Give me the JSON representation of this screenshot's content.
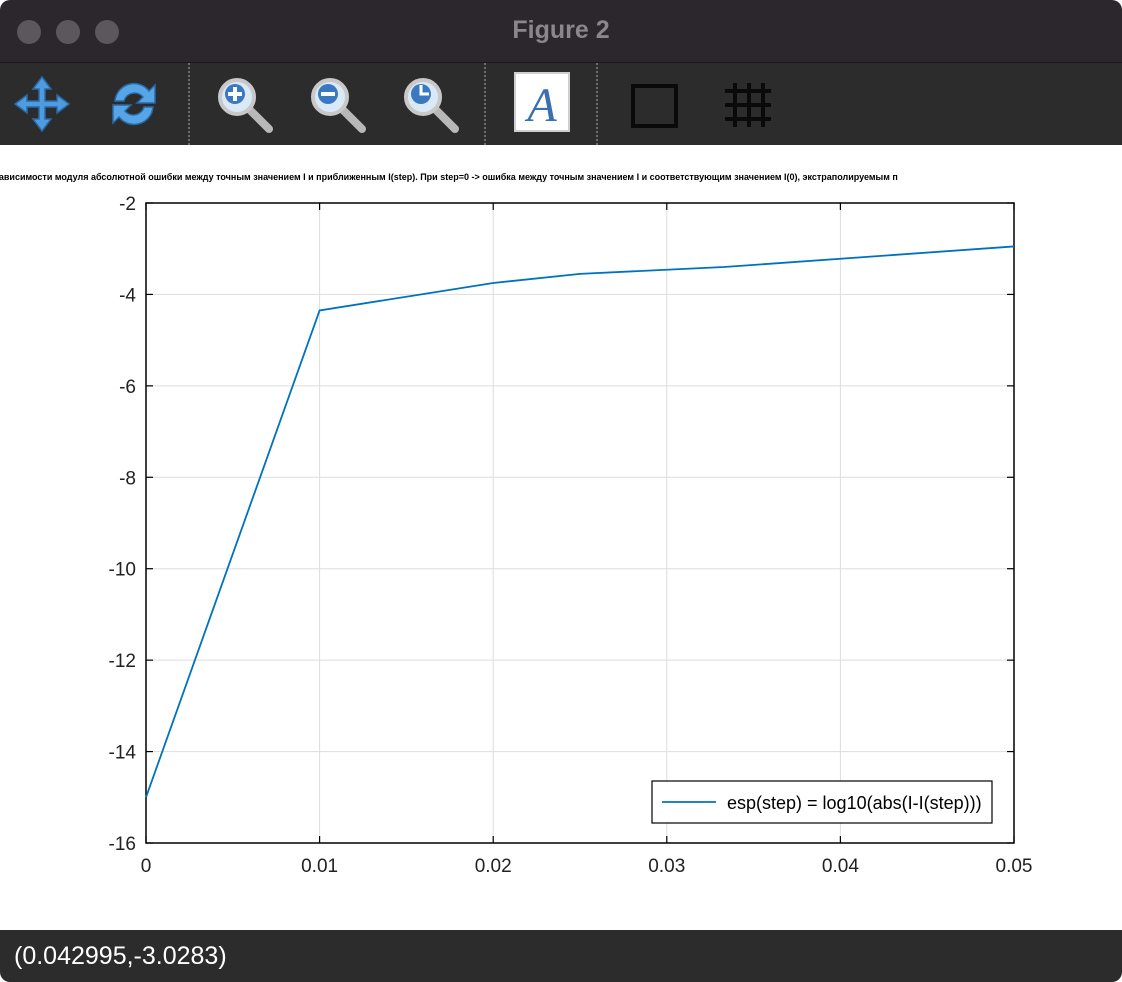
{
  "window": {
    "title": "Figure 2"
  },
  "toolbar": {
    "tools": [
      {
        "name": "pan",
        "icon": "pan-arrows-icon"
      },
      {
        "name": "rotate",
        "icon": "rotate-icon"
      },
      {
        "name": "zoom-in",
        "icon": "zoom-in-icon"
      },
      {
        "name": "zoom-out",
        "icon": "zoom-out-icon"
      },
      {
        "name": "zoom-reset",
        "icon": "zoom-reset-icon"
      },
      {
        "name": "insert-text",
        "icon": "text-a-icon"
      },
      {
        "name": "toggle-box",
        "icon": "box-icon"
      },
      {
        "name": "toggle-grid",
        "icon": "grid-icon"
      }
    ]
  },
  "status": {
    "coordinates": "(0.042995,-3.0283)"
  },
  "chart_data": {
    "type": "line",
    "title": "ик зависимости модуля абсолютной ошибки между точным значением I и приближенным I(step). При step=0 -> ошибка между точным значением I и соответствующим значением I(0), экстраполируемым п",
    "xlabel": "",
    "ylabel": "",
    "xlim": [
      0,
      0.05
    ],
    "ylim": [
      -16,
      -2
    ],
    "xticks": [
      0,
      0.01,
      0.02,
      0.03,
      0.04,
      0.05
    ],
    "xtick_labels": [
      "0",
      "0.01",
      "0.02",
      "0.03",
      "0.04",
      "0.05"
    ],
    "yticks": [
      -2,
      -4,
      -6,
      -8,
      -10,
      -12,
      -14,
      -16
    ],
    "ytick_labels": [
      "-2",
      "-4",
      "-6",
      "-8",
      "-10",
      "-12",
      "-14",
      "-16"
    ],
    "grid": true,
    "legend_position": "bottom-right",
    "series": [
      {
        "name": "esp(step) = log10(abs(I-I(step)))",
        "color": "#0072bd",
        "x": [
          0,
          0.01,
          0.02,
          0.025,
          0.0333,
          0.05
        ],
        "y": [
          -15,
          -4.35,
          -3.75,
          -3.55,
          -3.4,
          -2.95
        ]
      }
    ]
  }
}
